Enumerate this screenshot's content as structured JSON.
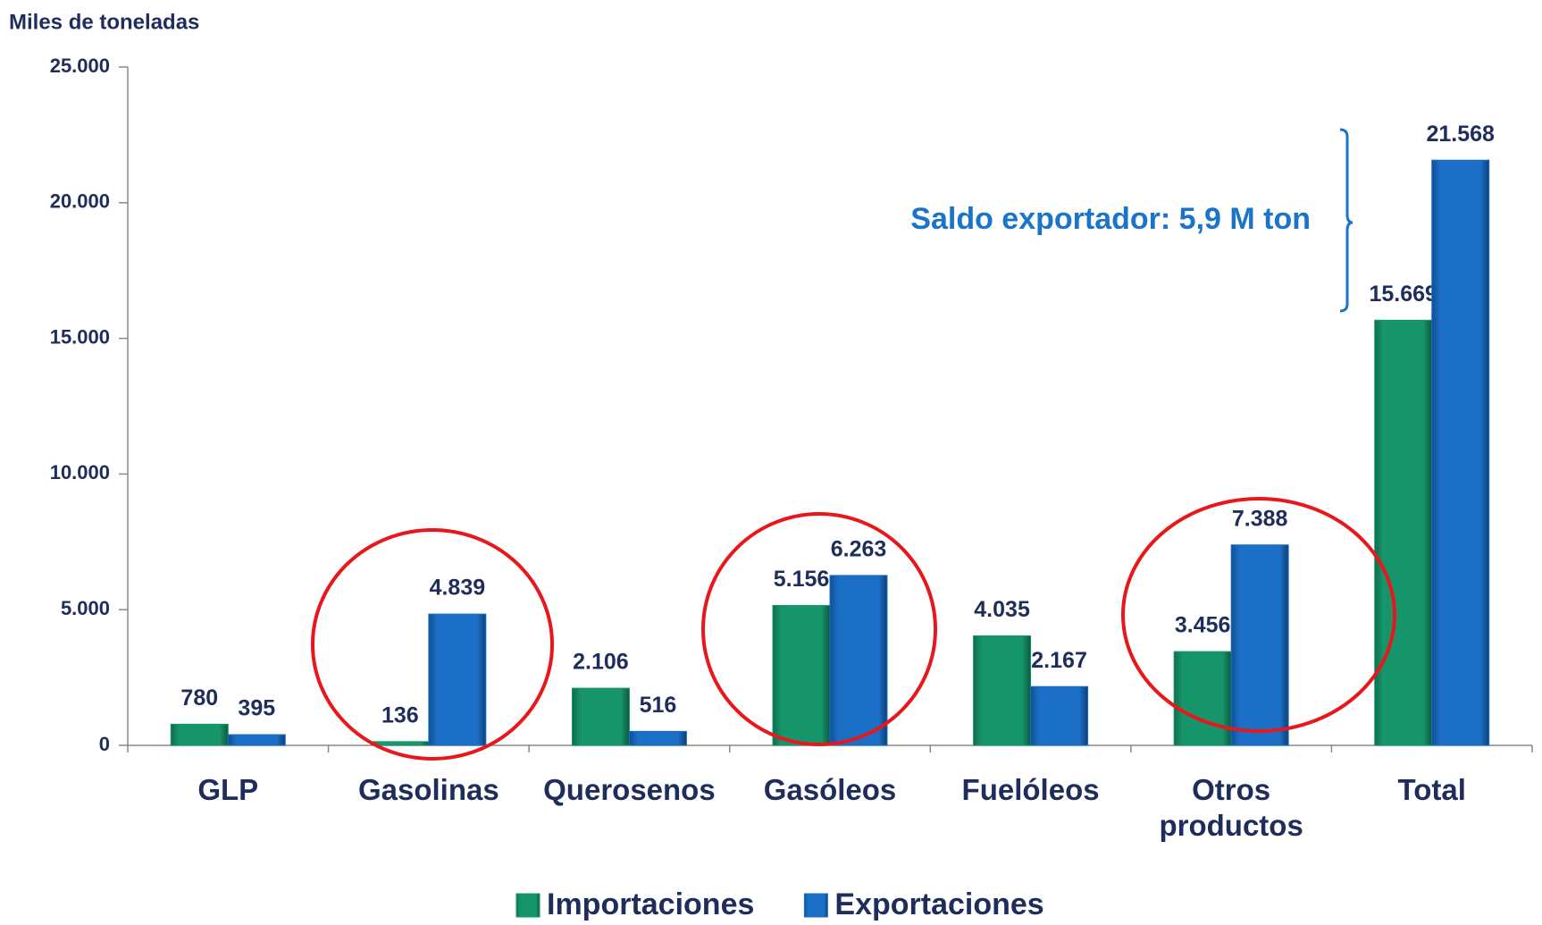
{
  "chart_data": {
    "type": "bar",
    "y_label": "Miles de toneladas",
    "categories": [
      "GLP",
      "Gasolinas",
      "Querosenos",
      "Gasóleos",
      "Fuelóleos",
      "Otros productos",
      "Total"
    ],
    "series": [
      {
        "name": "Importaciones",
        "color": "#17956a",
        "values": [
          780,
          136,
          2106,
          5156,
          4035,
          3456,
          15669
        ],
        "value_labels": [
          "780",
          "136",
          "2.106",
          "5.156",
          "4.035",
          "3.456",
          "15.669"
        ]
      },
      {
        "name": "Exportaciones",
        "color": "#1c6fc6",
        "values": [
          395,
          4839,
          516,
          6263,
          2167,
          7388,
          21568
        ],
        "value_labels": [
          "395",
          "4.839",
          "516",
          "6.263",
          "2.167",
          "7.388",
          "21.568"
        ]
      }
    ],
    "ylim": [
      0,
      25000
    ],
    "yticks": [
      0,
      {
        "value": 5000,
        "label": "5.000"
      },
      {
        "value": 10000,
        "label": "10.000"
      },
      {
        "value": 15000,
        "label": "15.000"
      },
      {
        "value": 20000,
        "label": "20.000"
      },
      {
        "value": 25000,
        "label": "25.000"
      }
    ],
    "annotation": "Saldo  exportador: 5,9 M ton",
    "legend": "bottom"
  }
}
